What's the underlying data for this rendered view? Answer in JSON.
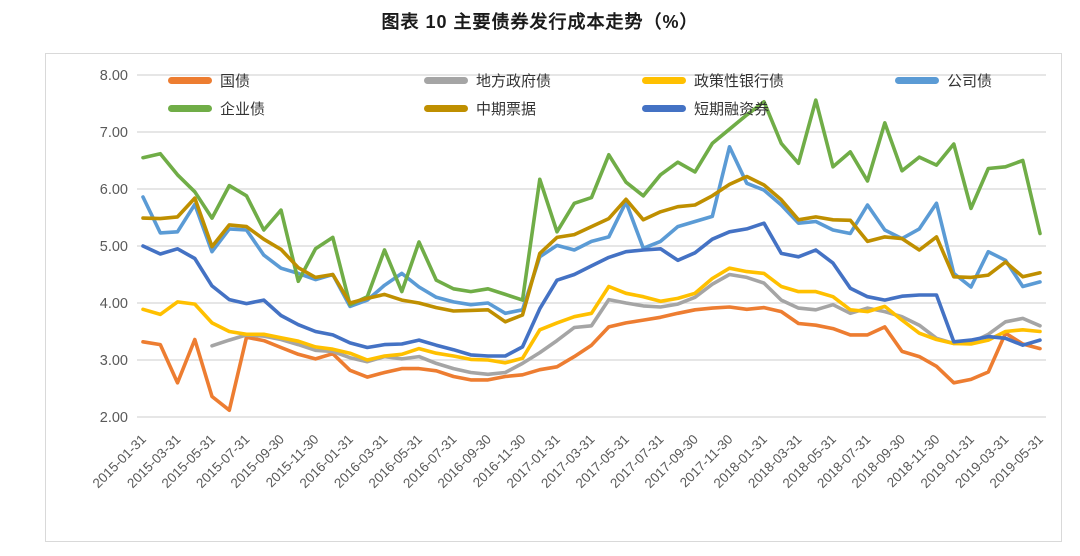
{
  "chart_data": {
    "type": "line",
    "title": "图表 10 主要债券发行成本走势（%）",
    "ylabel": "",
    "xlabel": "",
    "ylim": [
      2.0,
      8.0
    ],
    "grid": "horizontal",
    "legend_position": "top",
    "y_ticks": [
      "8.00",
      "7.00",
      "6.00",
      "5.00",
      "4.00",
      "3.00",
      "2.00"
    ],
    "x_tick_labels": [
      "2015-01-31",
      "2015-03-31",
      "2015-05-31",
      "2015-07-31",
      "2015-09-30",
      "2015-11-30",
      "2016-01-31",
      "2016-03-31",
      "2016-05-31",
      "2016-07-31",
      "2016-09-30",
      "2016-11-30",
      "2017-01-31",
      "2017-03-31",
      "2017-05-31",
      "2017-07-31",
      "2017-09-30",
      "2017-11-30",
      "2018-01-31",
      "2018-03-31",
      "2018-05-31",
      "2018-07-31",
      "2018-09-30",
      "2018-11-30",
      "2019-01-31",
      "2019-03-31",
      "2019-05-31"
    ],
    "x_months_per_point": 1,
    "series": [
      {
        "name": "国债",
        "color": "#ED7D31",
        "values": [
          3.32,
          3.27,
          2.6,
          3.36,
          2.36,
          2.12,
          3.4,
          3.34,
          3.22,
          3.1,
          3.02,
          3.11,
          2.82,
          2.7,
          2.78,
          2.85,
          2.85,
          2.81,
          2.71,
          2.65,
          2.65,
          2.71,
          2.74,
          2.83,
          2.88,
          3.06,
          3.26,
          3.58,
          3.65,
          3.7,
          3.75,
          3.82,
          3.88,
          3.91,
          3.93,
          3.89,
          3.92,
          3.85,
          3.64,
          3.61,
          3.55,
          3.44,
          3.44,
          3.58,
          3.15,
          3.06,
          2.89,
          2.6,
          2.66,
          2.79,
          3.47,
          3.28,
          3.2
        ]
      },
      {
        "name": "地方政府债",
        "color": "#A5A5A5",
        "values": [
          null,
          null,
          null,
          null,
          3.25,
          3.35,
          3.44,
          3.42,
          3.36,
          3.27,
          3.17,
          3.15,
          3.04,
          2.97,
          3.06,
          3.02,
          3.06,
          2.94,
          2.85,
          2.78,
          2.75,
          2.78,
          2.94,
          3.13,
          3.34,
          3.57,
          3.6,
          4.06,
          4.0,
          3.95,
          3.93,
          3.98,
          4.1,
          4.33,
          4.5,
          4.45,
          4.35,
          4.05,
          3.91,
          3.88,
          3.97,
          3.82,
          3.91,
          3.85,
          3.76,
          3.61,
          3.38,
          3.29,
          3.3,
          3.45,
          3.67,
          3.73,
          3.6
        ]
      },
      {
        "name": "政策性银行债",
        "color": "#FFC000",
        "values": [
          3.89,
          3.8,
          4.02,
          3.98,
          3.65,
          3.5,
          3.45,
          3.45,
          3.39,
          3.33,
          3.23,
          3.19,
          3.12,
          3.0,
          3.07,
          3.1,
          3.2,
          3.12,
          3.07,
          3.01,
          3.0,
          2.95,
          3.03,
          3.53,
          3.65,
          3.76,
          3.82,
          4.29,
          4.17,
          4.11,
          4.03,
          4.08,
          4.17,
          4.43,
          4.61,
          4.55,
          4.52,
          4.29,
          4.2,
          4.2,
          4.11,
          3.88,
          3.85,
          3.94,
          3.7,
          3.47,
          3.36,
          3.29,
          3.28,
          3.35,
          3.5,
          3.53,
          3.5
        ]
      },
      {
        "name": "公司债",
        "color": "#5B9BD5",
        "values": [
          5.86,
          5.23,
          5.25,
          5.73,
          4.9,
          5.3,
          5.28,
          4.84,
          4.61,
          4.52,
          4.41,
          4.5,
          3.94,
          4.05,
          4.31,
          4.52,
          4.28,
          4.1,
          4.02,
          3.97,
          4.0,
          3.82,
          3.88,
          4.81,
          5.01,
          4.93,
          5.08,
          5.16,
          5.77,
          4.96,
          5.08,
          5.34,
          5.43,
          5.52,
          6.74,
          6.1,
          5.98,
          5.72,
          5.4,
          5.43,
          5.28,
          5.22,
          5.72,
          5.28,
          5.13,
          5.3,
          5.75,
          4.52,
          4.28,
          4.9,
          4.75,
          4.29,
          4.37
        ]
      },
      {
        "name": "企业债",
        "color": "#70AD47",
        "values": [
          6.55,
          6.62,
          6.25,
          5.95,
          5.49,
          6.06,
          5.88,
          5.28,
          5.63,
          4.38,
          4.95,
          5.15,
          3.97,
          4.11,
          4.93,
          4.2,
          5.07,
          4.4,
          4.25,
          4.2,
          4.25,
          4.15,
          4.05,
          6.17,
          5.25,
          5.75,
          5.85,
          6.6,
          6.12,
          5.88,
          6.25,
          6.47,
          6.3,
          6.8,
          7.05,
          7.3,
          7.53,
          6.8,
          6.45,
          7.56,
          6.39,
          6.65,
          6.14,
          7.16,
          6.32,
          6.56,
          6.42,
          6.79,
          5.66,
          6.36,
          6.39,
          6.5,
          5.22
        ]
      },
      {
        "name": "中期票据",
        "color": "#BF8F00",
        "values": [
          5.49,
          5.48,
          5.51,
          5.84,
          4.99,
          5.37,
          5.34,
          5.12,
          4.94,
          4.62,
          4.45,
          4.5,
          4.0,
          4.08,
          4.15,
          4.05,
          4.0,
          3.92,
          3.86,
          3.87,
          3.88,
          3.67,
          3.79,
          4.87,
          5.15,
          5.2,
          5.34,
          5.48,
          5.82,
          5.46,
          5.6,
          5.69,
          5.72,
          5.88,
          6.08,
          6.22,
          6.07,
          5.81,
          5.46,
          5.51,
          5.46,
          5.45,
          5.08,
          5.16,
          5.13,
          4.93,
          5.16,
          4.46,
          4.45,
          4.49,
          4.72,
          4.46,
          4.53
        ]
      },
      {
        "name": "短期融资券",
        "color": "#4472C4",
        "values": [
          5.0,
          4.86,
          4.95,
          4.78,
          4.3,
          4.06,
          3.99,
          4.05,
          3.78,
          3.62,
          3.5,
          3.44,
          3.3,
          3.22,
          3.27,
          3.28,
          3.35,
          3.26,
          3.18,
          3.09,
          3.07,
          3.07,
          3.23,
          3.9,
          4.4,
          4.5,
          4.65,
          4.8,
          4.9,
          4.93,
          4.95,
          4.75,
          4.88,
          5.12,
          5.25,
          5.3,
          5.4,
          4.87,
          4.81,
          4.93,
          4.7,
          4.26,
          4.11,
          4.05,
          4.12,
          4.14,
          4.14,
          3.32,
          3.35,
          3.41,
          3.38,
          3.26,
          3.35
        ]
      }
    ]
  }
}
